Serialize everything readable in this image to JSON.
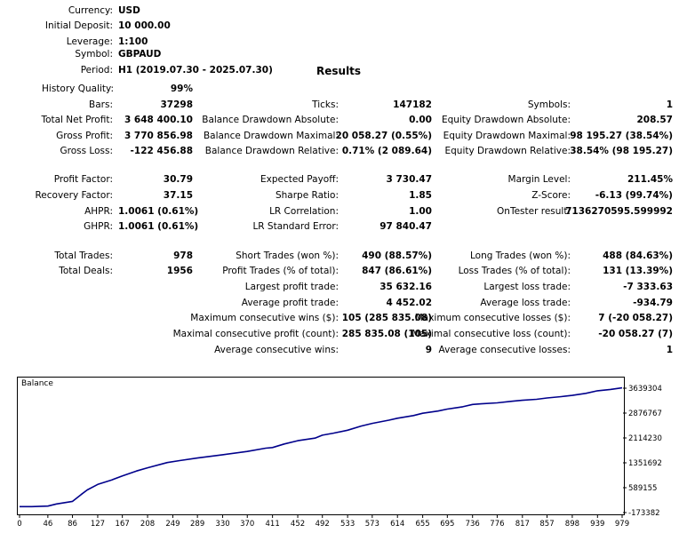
{
  "header": {
    "currency_label": "Currency:",
    "currency_value": "USD",
    "deposit_label": "Initial Deposit:",
    "deposit_value": "10 000.00",
    "leverage_label": "Leverage:",
    "leverage_value": "1:100",
    "symbol_label": "Symbol:",
    "symbol_value": "GBPAUD",
    "period_label": "Period:",
    "period_value": "H1 (2019.07.30 - 2025.07.30)",
    "results_title": "Results",
    "history_label": "History Quality:",
    "history_value": "99%"
  },
  "stats": {
    "bars_label": "Bars:",
    "bars_value": "37298",
    "ticks_label": "Ticks:",
    "ticks_value": "147182",
    "symbols_label": "Symbols:",
    "symbols_value": "1",
    "net_profit_label": "Total Net Profit:",
    "net_profit_value": "3 648 400.10",
    "bal_dd_abs_label": "Balance Drawdown Absolute:",
    "bal_dd_abs_value": "0.00",
    "eq_dd_abs_label": "Equity Drawdown Absolute:",
    "eq_dd_abs_value": "208.57",
    "gross_profit_label": "Gross Profit:",
    "gross_profit_value": "3 770 856.98",
    "bal_dd_max_label": "Balance Drawdown Maximal:",
    "bal_dd_max_value": "20 058.27 (0.55%)",
    "eq_dd_max_label": "Equity Drawdown Maximal:",
    "eq_dd_max_value": "98 195.27 (38.54%)",
    "gross_loss_label": "Gross Loss:",
    "gross_loss_value": "-122 456.88",
    "bal_dd_rel_label": "Balance Drawdown Relative:",
    "bal_dd_rel_value": "0.71% (2 089.64)",
    "eq_dd_rel_label": "Equity Drawdown Relative:",
    "eq_dd_rel_value": "38.54% (98 195.27)",
    "profit_factor_label": "Profit Factor:",
    "profit_factor_value": "30.79",
    "expected_payoff_label": "Expected Payoff:",
    "expected_payoff_value": "3 730.47",
    "margin_level_label": "Margin Level:",
    "margin_level_value": "211.45%",
    "recovery_label": "Recovery Factor:",
    "recovery_value": "37.15",
    "sharpe_label": "Sharpe Ratio:",
    "sharpe_value": "1.85",
    "zscore_label": "Z-Score:",
    "zscore_value": "-6.13 (99.74%)",
    "ahpr_label": "AHPR:",
    "ahpr_value": "1.0061 (0.61%)",
    "lr_corr_label": "LR Correlation:",
    "lr_corr_value": "1.00",
    "ontester_label": "OnTester result:",
    "ontester_value": "7136270595.599992",
    "ghpr_label": "GHPR:",
    "ghpr_value": "1.0061 (0.61%)",
    "lr_err_label": "LR Standard Error:",
    "lr_err_value": "97 840.47"
  },
  "trades": {
    "total_trades_label": "Total Trades:",
    "total_trades_value": "978",
    "short_label": "Short Trades (won %):",
    "short_value": "490 (88.57%)",
    "long_label": "Long Trades (won %):",
    "long_value": "488 (84.63%)",
    "total_deals_label": "Total Deals:",
    "total_deals_value": "1956",
    "profit_trades_label": "Profit Trades (% of total):",
    "profit_trades_value": "847 (86.61%)",
    "loss_trades_label": "Loss Trades (% of total):",
    "loss_trades_value": "131 (13.39%)",
    "largest_profit_label": "Largest profit trade:",
    "largest_profit_value": "35 632.16",
    "largest_loss_label": "Largest loss trade:",
    "largest_loss_value": "-7 333.63",
    "avg_profit_label": "Average profit trade:",
    "avg_profit_value": "4 452.02",
    "avg_loss_label": "Average loss trade:",
    "avg_loss_value": "-934.79",
    "max_cons_wins_label": "Maximum consecutive wins ($):",
    "max_cons_wins_value": "105 (285 835.08)",
    "max_cons_losses_label": "Maximum consecutive losses ($):",
    "max_cons_losses_value": "7 (-20 058.27)",
    "maximal_cons_profit_label": "Maximal consecutive profit (count):",
    "maximal_cons_profit_value": "285 835.08 (105)",
    "maximal_cons_loss_label": "Maximal consecutive loss (count):",
    "maximal_cons_loss_value": "-20 058.27 (7)",
    "avg_cons_wins_label": "Average consecutive wins:",
    "avg_cons_wins_value": "9",
    "avg_cons_losses_label": "Average consecutive losses:",
    "avg_cons_losses_value": "1"
  },
  "chart_data": {
    "type": "line",
    "title": "Balance",
    "line_color": "#00008b",
    "x_ticks": [
      0,
      46,
      86,
      127,
      167,
      208,
      249,
      289,
      330,
      370,
      411,
      452,
      492,
      533,
      573,
      614,
      655,
      695,
      736,
      776,
      817,
      857,
      898,
      939,
      979
    ],
    "y_ticks": [
      "3639304",
      "2876767",
      "2114230",
      "1351692",
      "589155",
      "-173382"
    ],
    "y_tick_values": [
      3639304,
      2876767,
      2114230,
      1351692,
      589155,
      -173382
    ],
    "xlim": [
      0,
      979
    ],
    "ylim": [
      -173382,
      3639304
    ],
    "series": [
      {
        "x": [
          0,
          20,
          46,
          60,
          86,
          100,
          110,
          127,
          150,
          167,
          190,
          208,
          240,
          260,
          289,
          330,
          370,
          400,
          411,
          430,
          452,
          480,
          492,
          510,
          533,
          555,
          573,
          600,
          614,
          640,
          655,
          680,
          695,
          720,
          736,
          750,
          776,
          800,
          817,
          840,
          857,
          880,
          898,
          920,
          939,
          960,
          979
        ],
        "y": [
          10000,
          10000,
          25000,
          90000,
          170000,
          380000,
          520000,
          690000,
          830000,
          950000,
          1100000,
          1200000,
          1360000,
          1420000,
          1500000,
          1600000,
          1700000,
          1800000,
          1820000,
          1930000,
          2030000,
          2110000,
          2200000,
          2260000,
          2350000,
          2480000,
          2560000,
          2660000,
          2720000,
          2800000,
          2870000,
          2940000,
          3000000,
          3070000,
          3140000,
          3160000,
          3190000,
          3240000,
          3270000,
          3300000,
          3340000,
          3380000,
          3420000,
          3480000,
          3560000,
          3600000,
          3650000
        ]
      }
    ]
  }
}
